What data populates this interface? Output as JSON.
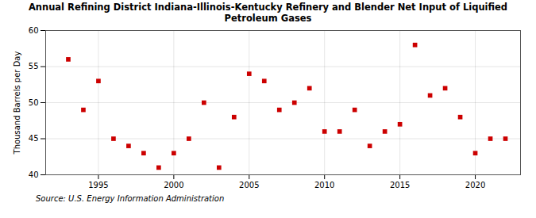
{
  "chart_data": {
    "type": "scatter",
    "title": "Annual Refining District Indiana-Illinois-Kentucky Refinery and Blender Net Input of Liquified\nPetroleum Gases",
    "y_label": "Thousand Barrels per Day",
    "annotations": [
      "Source: U.S. Energy Information Administration"
    ],
    "x": [
      1993,
      1994,
      1995,
      1996,
      1997,
      1998,
      1999,
      2000,
      2001,
      2002,
      2003,
      2004,
      2005,
      2006,
      2007,
      2008,
      2009,
      2010,
      2011,
      2012,
      2013,
      2014,
      2015,
      2016,
      2017,
      2018,
      2019,
      2020,
      2021,
      2022
    ],
    "values": [
      56.0,
      49.0,
      53.0,
      45.0,
      44.0,
      43.0,
      41.0,
      43.0,
      45.0,
      50.0,
      41.0,
      48.0,
      54.0,
      53.0,
      49.0,
      50.0,
      52.0,
      46.0,
      46.0,
      49.0,
      44.0,
      46.0,
      47.0,
      58.0,
      51.0,
      52.0,
      48.0,
      43.0,
      45.0,
      45.0
    ],
    "color": "#cc0000",
    "marker": "square",
    "xlim": [
      1991.5,
      2023
    ],
    "ylim": [
      40,
      60
    ],
    "xticks": [
      1995,
      2000,
      2005,
      2010,
      2015,
      2020
    ],
    "yticks": [
      40,
      45,
      50,
      55,
      60
    ],
    "grid": true
  }
}
